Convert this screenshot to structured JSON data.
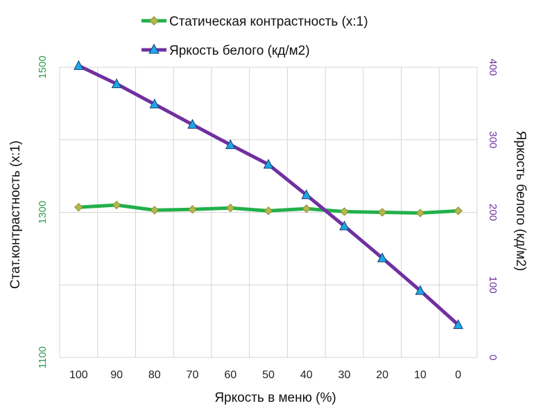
{
  "chart_data": {
    "type": "line",
    "x": [
      "100",
      "90",
      "80",
      "70",
      "60",
      "50",
      "40",
      "30",
      "20",
      "10",
      "0"
    ],
    "xlabel": "Яркость в меню (%)",
    "ylabel_left": "Стат.контрастность  (x:1)",
    "ylabel_right": "Яркость белого (кд/м2)",
    "ylim_left": [
      1100,
      1500
    ],
    "yticks_left": [
      "1100",
      "1300",
      "1500"
    ],
    "ylim_right": [
      0,
      400
    ],
    "yticks_right": [
      "0",
      "100",
      "200",
      "300",
      "400"
    ],
    "grid": true,
    "legend_position": "top",
    "series": [
      {
        "name": "Статическая контрастность (x:1)",
        "axis": "left",
        "color": "#22B04A",
        "marker": "diamond",
        "marker_color": "#B5B84E",
        "values": [
          1307,
          1310,
          1303,
          1304,
          1306,
          1302,
          1305,
          1301,
          1300,
          1299,
          1302
        ]
      },
      {
        "name": "Яркость белого (кд/м2)",
        "axis": "right",
        "color": "#7030A0",
        "marker": "triangle",
        "marker_color": "#1EA7E8",
        "values": [
          402,
          377,
          349,
          321,
          293,
          266,
          224,
          181,
          137,
          92,
          45
        ]
      }
    ]
  }
}
